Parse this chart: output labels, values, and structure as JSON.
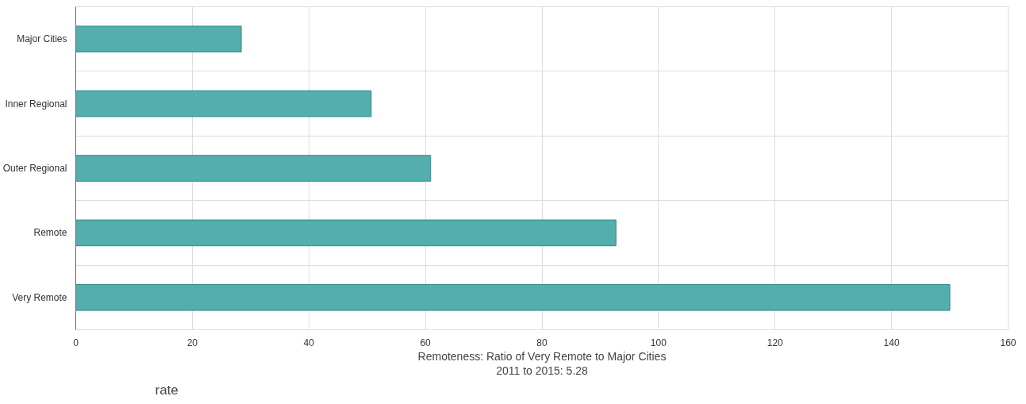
{
  "chart_data": {
    "type": "bar",
    "orientation": "horizontal",
    "categories": [
      "Major Cities",
      "Inner Regional",
      "Outer Regional",
      "Remote",
      "Very Remote"
    ],
    "values": [
      28.4,
      50.7,
      60.9,
      92.7,
      150
    ],
    "color": "#55aeae",
    "xlim": [
      0,
      160
    ],
    "xticks": [
      0,
      20,
      40,
      60,
      80,
      100,
      120,
      140,
      160
    ],
    "xlabel": "rate",
    "grid": true,
    "annotations": [
      "Remoteness: Ratio of Very Remote to Major Cities",
      "2011 to 2015: 5.28"
    ]
  }
}
